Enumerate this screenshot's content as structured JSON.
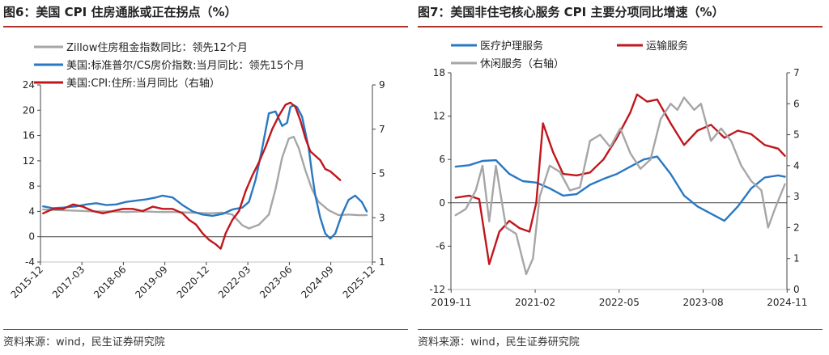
{
  "charts": [
    {
      "title": "图6：美国 CPI 住房通胀或正在拐点（%）",
      "source": "资料来源：wind，民生证券研究院"
    },
    {
      "title": "图7：美国非住宅核心服务 CPI 主要分项同比增速（%）",
      "source": "资料来源：wind，民生证券研究院"
    }
  ],
  "chart_data": [
    {
      "type": "line",
      "title": "图6：美国 CPI 住房通胀或正在拐点（%）",
      "x_ticks": [
        "2015-12",
        "2017-03",
        "2018-06",
        "2019-09",
        "2020-12",
        "2022-03",
        "2023-06",
        "2024-09",
        "2025-12"
      ],
      "x_range": [
        2015.92,
        2025.92
      ],
      "y_left": {
        "min": -4,
        "max": 24,
        "ticks": [
          -4,
          0,
          4,
          8,
          12,
          16,
          20,
          24
        ]
      },
      "y_right": {
        "min": 1,
        "max": 9,
        "ticks": [
          1,
          3,
          5,
          7,
          9
        ]
      },
      "legend_position": "top-left",
      "series": [
        {
          "name": "Zillow住房租金指数同比：领先12个月",
          "color": "#a6a6a6",
          "axis": "left",
          "x": [
            2016.0,
            2016.5,
            2017.0,
            2017.5,
            2018.0,
            2018.5,
            2019.0,
            2019.5,
            2020.0,
            2020.5,
            2021.0,
            2021.4,
            2021.7,
            2022.0,
            2022.2,
            2022.5,
            2022.8,
            2023.0,
            2023.2,
            2023.4,
            2023.55,
            2023.7,
            2023.9,
            2024.1,
            2024.3,
            2024.6,
            2024.9,
            2025.2,
            2025.5,
            2025.75
          ],
          "y": [
            4.3,
            4.2,
            4.1,
            4.0,
            4.0,
            3.9,
            4.0,
            3.9,
            3.9,
            3.8,
            3.7,
            3.8,
            3.5,
            1.8,
            1.3,
            1.9,
            3.5,
            7.5,
            12.5,
            15.5,
            15.8,
            14.0,
            10.5,
            7.5,
            5.5,
            4.2,
            3.4,
            3.5,
            3.4,
            3.4
          ]
        },
        {
          "name": "美国:标准普尔/CS房价指数:当月同比：领先15个月",
          "color": "#2a78c2",
          "axis": "left",
          "x": [
            2016.0,
            2016.3,
            2016.6,
            2017.0,
            2017.3,
            2017.6,
            2017.9,
            2018.2,
            2018.5,
            2018.8,
            2019.1,
            2019.4,
            2019.6,
            2019.9,
            2020.2,
            2020.5,
            2020.8,
            2021.1,
            2021.4,
            2021.7,
            2022.0,
            2022.2,
            2022.4,
            2022.6,
            2022.8,
            2023.0,
            2023.2,
            2023.35,
            2023.45,
            2023.55,
            2023.65,
            2023.8,
            2024.0,
            2024.1,
            2024.2,
            2024.35,
            2024.5,
            2024.65,
            2024.8,
            2025.0,
            2025.2,
            2025.4,
            2025.6,
            2025.75
          ],
          "y": [
            4.8,
            4.5,
            4.6,
            4.8,
            5.1,
            5.3,
            5.0,
            5.1,
            5.5,
            5.7,
            5.9,
            6.2,
            6.5,
            6.2,
            5.0,
            4.0,
            3.5,
            3.3,
            3.6,
            4.3,
            4.6,
            5.5,
            9.0,
            14.0,
            19.5,
            19.8,
            17.5,
            18.0,
            20.5,
            20.8,
            20.5,
            19.0,
            14.0,
            10.0,
            6.5,
            3.0,
            0.5,
            -0.3,
            0.5,
            3.5,
            5.8,
            6.5,
            5.5,
            4.0
          ]
        },
        {
          "name": "美国:CPI:住所:当月同比（右轴）",
          "color": "#c0161c",
          "axis": "right",
          "x": [
            2016.0,
            2016.3,
            2016.6,
            2016.9,
            2017.2,
            2017.5,
            2017.8,
            2018.1,
            2018.4,
            2018.7,
            2019.0,
            2019.3,
            2019.6,
            2019.9,
            2020.2,
            2020.4,
            2020.6,
            2020.8,
            2021.0,
            2021.2,
            2021.35,
            2021.5,
            2021.7,
            2021.9,
            2022.1,
            2022.3,
            2022.5,
            2022.7,
            2022.9,
            2023.1,
            2023.3,
            2023.45,
            2023.6,
            2023.75,
            2023.9,
            2024.05,
            2024.2,
            2024.35,
            2024.5,
            2024.65,
            2024.8,
            2024.95
          ],
          "y": [
            3.2,
            3.4,
            3.4,
            3.6,
            3.5,
            3.3,
            3.2,
            3.3,
            3.4,
            3.4,
            3.3,
            3.5,
            3.4,
            3.4,
            3.2,
            2.9,
            2.7,
            2.3,
            2.0,
            1.8,
            1.6,
            2.3,
            2.9,
            3.3,
            4.2,
            4.9,
            5.5,
            6.2,
            7.0,
            7.6,
            8.1,
            8.2,
            8.0,
            7.4,
            6.6,
            6.0,
            5.8,
            5.6,
            5.2,
            5.1,
            4.9,
            4.7
          ]
        }
      ]
    },
    {
      "type": "line",
      "title": "图7：美国非住宅核心服务 CPI 主要分项同比增速（%）",
      "x_ticks": [
        "2019-11",
        "2021-02",
        "2022-05",
        "2023-08",
        "2024-11"
      ],
      "x_range": [
        2019.83,
        2024.83
      ],
      "y_left": {
        "min": -12,
        "max": 18,
        "ticks": [
          -12,
          -6,
          0,
          6,
          12,
          18
        ]
      },
      "y_right": {
        "min": 0,
        "max": 7,
        "ticks": [
          0,
          1,
          2,
          3,
          4,
          5,
          6,
          7
        ]
      },
      "legend_position": "top-left",
      "series": [
        {
          "name": "医疗护理服务",
          "color": "#2a78c2",
          "axis": "left",
          "x": [
            2019.9,
            2020.1,
            2020.3,
            2020.5,
            2020.7,
            2020.9,
            2021.1,
            2021.3,
            2021.5,
            2021.7,
            2021.9,
            2022.1,
            2022.3,
            2022.5,
            2022.7,
            2022.9,
            2023.1,
            2023.3,
            2023.5,
            2023.7,
            2023.9,
            2024.1,
            2024.3,
            2024.5,
            2024.7,
            2024.8
          ],
          "y": [
            5.0,
            5.2,
            5.8,
            5.9,
            4.0,
            3.0,
            2.8,
            2.0,
            1.0,
            1.2,
            2.5,
            3.3,
            4.0,
            5.0,
            6.0,
            6.4,
            4.0,
            1.0,
            -0.5,
            -1.5,
            -2.5,
            -0.5,
            2.0,
            3.5,
            3.8,
            3.6
          ]
        },
        {
          "name": "运输服务",
          "color": "#c0161c",
          "axis": "left",
          "x": [
            2019.9,
            2020.1,
            2020.25,
            2020.4,
            2020.55,
            2020.7,
            2020.85,
            2021.0,
            2021.1,
            2021.2,
            2021.35,
            2021.5,
            2021.7,
            2021.9,
            2022.1,
            2022.3,
            2022.5,
            2022.6,
            2022.75,
            2022.9,
            2023.1,
            2023.3,
            2023.5,
            2023.7,
            2023.9,
            2024.1,
            2024.3,
            2024.5,
            2024.7,
            2024.8
          ],
          "y": [
            0.7,
            1.0,
            0.5,
            -8.5,
            -4.0,
            -2.5,
            -3.5,
            -4.0,
            0.0,
            11.0,
            7.0,
            4.0,
            3.8,
            4.2,
            6.0,
            9.0,
            12.5,
            15.0,
            14.0,
            14.3,
            11.0,
            8.0,
            10.0,
            10.8,
            9.0,
            10.0,
            9.5,
            8.0,
            7.5,
            6.5
          ]
        },
        {
          "name": "休闲服务（右轴）",
          "color": "#a6a6a6",
          "axis": "right",
          "x": [
            2019.9,
            2020.05,
            2020.2,
            2020.3,
            2020.4,
            2020.5,
            2020.65,
            2020.8,
            2020.95,
            2021.05,
            2021.15,
            2021.3,
            2021.45,
            2021.6,
            2021.75,
            2021.9,
            2022.05,
            2022.2,
            2022.35,
            2022.5,
            2022.65,
            2022.8,
            2022.95,
            2023.1,
            2023.2,
            2023.3,
            2023.45,
            2023.55,
            2023.7,
            2023.85,
            2024.0,
            2024.15,
            2024.3,
            2024.45,
            2024.55,
            2024.65,
            2024.8
          ],
          "y": [
            2.4,
            2.6,
            3.2,
            4.0,
            2.2,
            4.0,
            2.0,
            1.8,
            0.5,
            1.0,
            3.0,
            4.0,
            3.8,
            3.2,
            3.3,
            4.8,
            5.0,
            4.6,
            5.2,
            4.4,
            3.9,
            4.2,
            5.5,
            6.0,
            5.8,
            6.2,
            5.8,
            6.0,
            4.8,
            5.2,
            4.8,
            4.0,
            3.5,
            3.2,
            2.0,
            2.6,
            3.4
          ]
        }
      ]
    }
  ]
}
